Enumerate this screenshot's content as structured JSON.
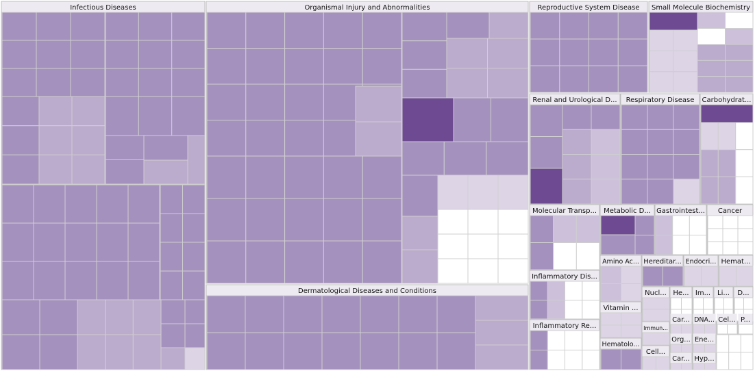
{
  "chart_data": {
    "type": "treemap",
    "title": "",
    "color_scale": {
      "lightest": "#ffffff",
      "light": "#ddd4e6",
      "medium": "#bbabcd",
      "standard": "#a591be",
      "dark": "#6d4a91"
    },
    "categories": [
      {
        "label": "Infectious Diseases"
      },
      {
        "label": "Organismal Injury and Abnormalities"
      },
      {
        "label": "Dermatological Diseases and Conditions"
      },
      {
        "label": "Reproductive System Disease"
      },
      {
        "label": "Small Molecule Biochemistry"
      },
      {
        "label": "Renal and Urological D..."
      },
      {
        "label": "Respiratory Disease"
      },
      {
        "label": "Carbohydrat..."
      },
      {
        "label": "Molecular Transp..."
      },
      {
        "label": "Metabolic D..."
      },
      {
        "label": "Gastrointest..."
      },
      {
        "label": "Cancer"
      },
      {
        "label": "Inflammatory Dis..."
      },
      {
        "label": "Inflammatory Re..."
      },
      {
        "label": "Amino Ac..."
      },
      {
        "label": "Hereditar..."
      },
      {
        "label": "Endocri..."
      },
      {
        "label": "Hemat..."
      },
      {
        "label": "Vitamin ..."
      },
      {
        "label": "Nucl..."
      },
      {
        "label": "He..."
      },
      {
        "label": "Im..."
      },
      {
        "label": "Li..."
      },
      {
        "label": "D..."
      },
      {
        "label": "Immun..."
      },
      {
        "label": "Car..."
      },
      {
        "label": "DNA..."
      },
      {
        "label": "Cel..."
      },
      {
        "label": "P..."
      },
      {
        "label": "Hematolo..."
      },
      {
        "label": "Org..."
      },
      {
        "label": "Ene..."
      },
      {
        "label": "Cell..."
      },
      {
        "label": "Car..."
      },
      {
        "label": "Hyp..."
      }
    ]
  }
}
